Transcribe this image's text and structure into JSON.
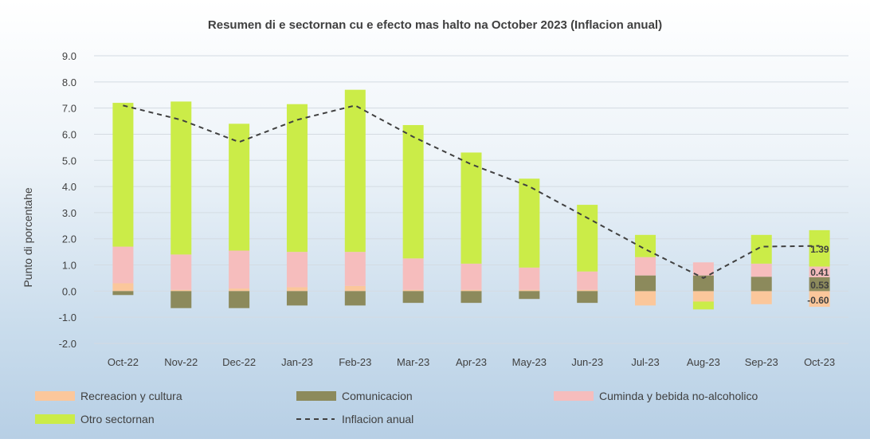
{
  "chart_data": {
    "type": "bar",
    "title": "Resumen di e sectornan cu e efecto mas halto na October 2023 (Inflacion anual)",
    "ylabel": "Punto di porcentahe",
    "xlabel": "",
    "ylim": [
      -2.0,
      9.0
    ],
    "ytick_step": 1.0,
    "grid": true,
    "legend_position": "bottom",
    "categories": [
      "Oct-22",
      "Nov-22",
      "Dec-22",
      "Jan-23",
      "Feb-23",
      "Mar-23",
      "Apr-23",
      "May-23",
      "Jun-23",
      "Jul-23",
      "Aug-23",
      "Sep-23",
      "Oct-23"
    ],
    "series": [
      {
        "name": "Recreacion y cultura",
        "kind": "bar",
        "color": "#fbc79b",
        "values": [
          0.3,
          0.05,
          0.1,
          0.15,
          0.2,
          0.05,
          0.05,
          0.05,
          0.05,
          -0.55,
          -0.4,
          -0.5,
          -0.6
        ]
      },
      {
        "name": "Comunicacion",
        "kind": "bar",
        "color": "#8c8a5c",
        "values": [
          -0.15,
          -0.65,
          -0.65,
          -0.55,
          -0.55,
          -0.45,
          -0.45,
          -0.3,
          -0.45,
          0.6,
          0.6,
          0.55,
          0.53
        ]
      },
      {
        "name": "Cuminda y bebida no-alcoholico",
        "kind": "bar",
        "color": "#f6bdbd",
        "values": [
          1.4,
          1.35,
          1.45,
          1.35,
          1.3,
          1.2,
          1.0,
          0.85,
          0.7,
          0.7,
          0.5,
          0.5,
          0.41
        ]
      },
      {
        "name": "Otro sectornan",
        "kind": "bar",
        "color": "#cbec48",
        "values": [
          5.5,
          5.85,
          4.85,
          5.65,
          6.2,
          5.1,
          4.25,
          3.4,
          2.55,
          0.85,
          -0.3,
          1.1,
          1.39
        ]
      },
      {
        "name": "Inflacion anual",
        "kind": "line",
        "style": "dashed",
        "color": "#404040",
        "values": [
          7.1,
          6.55,
          5.7,
          6.55,
          7.1,
          5.9,
          4.85,
          4.0,
          2.8,
          1.6,
          0.5,
          1.7,
          1.73
        ]
      }
    ],
    "data_labels": [
      {
        "category": "Oct-23",
        "series": "Otro sectornan",
        "text": "1.39"
      },
      {
        "category": "Oct-23",
        "series": "Cuminda y bebida no-alcoholico",
        "text": "0.41"
      },
      {
        "category": "Oct-23",
        "series": "Comunicacion",
        "text": "0.53"
      },
      {
        "category": "Oct-23",
        "series": "Recreacion y cultura",
        "text": "-0.60"
      }
    ]
  }
}
